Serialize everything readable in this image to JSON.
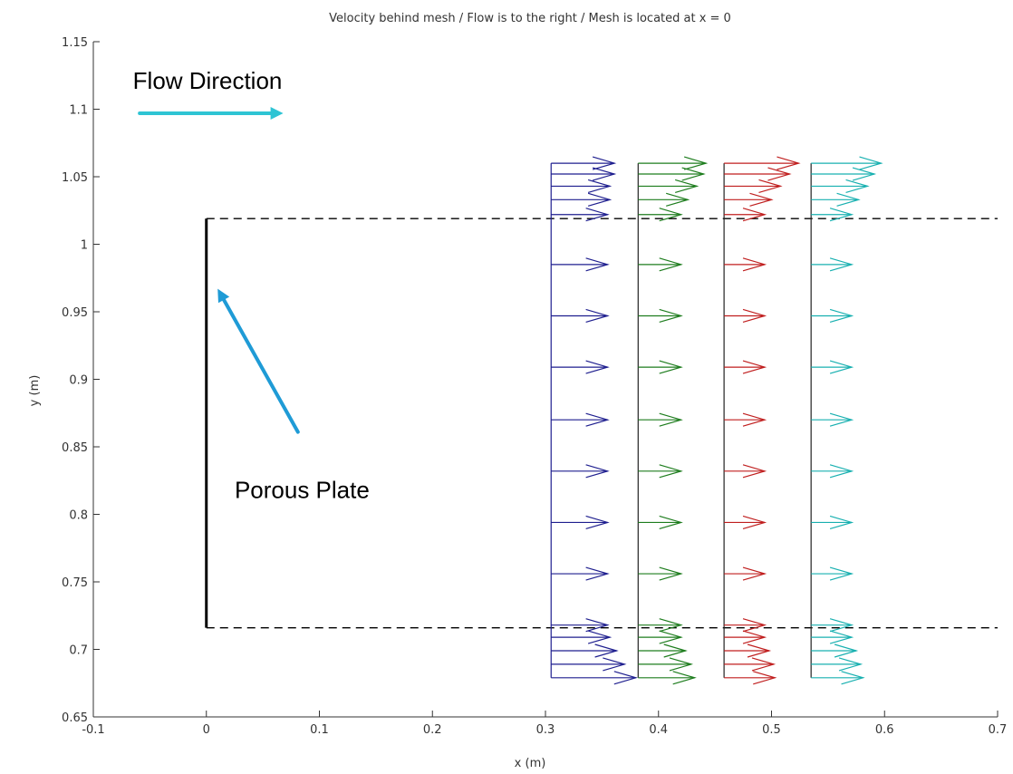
{
  "chart_data": {
    "type": "quiver",
    "title": "Velocity behind mesh / Flow is to the right / Mesh is located at x = 0",
    "xlabel": "x (m)",
    "ylabel": "y (m)",
    "xlim": [
      -0.1,
      0.7
    ],
    "ylim": [
      0.65,
      1.15
    ],
    "xticks": [
      -0.1,
      0,
      0.1,
      0.2,
      0.3,
      0.4,
      0.5,
      0.6,
      0.7
    ],
    "xtick_labels": [
      "-0.1",
      "0",
      "0.1",
      "0.2",
      "0.3",
      "0.4",
      "0.5",
      "0.6",
      "0.7"
    ],
    "yticks": [
      0.65,
      0.7,
      0.75,
      0.8,
      0.85,
      0.9,
      0.95,
      1,
      1.05,
      1.1,
      1.15
    ],
    "ytick_labels": [
      "0.65",
      "0.7",
      "0.75",
      "0.8",
      "0.85",
      "0.9",
      "0.95",
      "1",
      "1.05",
      "1.1",
      "1.15"
    ],
    "grid": false,
    "plate": {
      "x": 0,
      "y_bottom": 0.716,
      "y_top": 1.019,
      "color": "#000000"
    },
    "boundaries": {
      "y": [
        0.716,
        1.019
      ],
      "x_start": 0.0,
      "x_end": 0.7,
      "style": "dashed",
      "color": "#000000"
    },
    "series": [
      {
        "color": "#1f1f8f",
        "x0": 0.305,
        "points": [
          [
            0.679,
            0.075
          ],
          [
            0.689,
            0.065
          ],
          [
            0.699,
            0.058
          ],
          [
            0.709,
            0.052
          ],
          [
            0.718,
            0.05
          ],
          [
            0.756,
            0.05
          ],
          [
            0.794,
            0.05
          ],
          [
            0.832,
            0.05
          ],
          [
            0.87,
            0.05
          ],
          [
            0.909,
            0.05
          ],
          [
            0.947,
            0.05
          ],
          [
            0.985,
            0.05
          ],
          [
            1.022,
            0.05
          ],
          [
            1.033,
            0.052
          ],
          [
            1.043,
            0.052
          ],
          [
            1.052,
            0.056
          ],
          [
            1.06,
            0.056
          ]
        ]
      },
      {
        "color": "#1e7d1e",
        "x0": 0.382,
        "points": [
          [
            0.679,
            0.05
          ],
          [
            0.689,
            0.047
          ],
          [
            0.699,
            0.042
          ],
          [
            0.709,
            0.038
          ],
          [
            0.718,
            0.038
          ],
          [
            0.756,
            0.038
          ],
          [
            0.794,
            0.038
          ],
          [
            0.832,
            0.038
          ],
          [
            0.87,
            0.038
          ],
          [
            0.909,
            0.038
          ],
          [
            0.947,
            0.038
          ],
          [
            0.985,
            0.038
          ],
          [
            1.022,
            0.038
          ],
          [
            1.033,
            0.044
          ],
          [
            1.043,
            0.052
          ],
          [
            1.052,
            0.058
          ],
          [
            1.06,
            0.06
          ]
        ]
      },
      {
        "color": "#c01f1f",
        "x0": 0.458,
        "points": [
          [
            0.679,
            0.045
          ],
          [
            0.689,
            0.044
          ],
          [
            0.699,
            0.04
          ],
          [
            0.709,
            0.036
          ],
          [
            0.718,
            0.036
          ],
          [
            0.756,
            0.036
          ],
          [
            0.794,
            0.036
          ],
          [
            0.832,
            0.036
          ],
          [
            0.87,
            0.036
          ],
          [
            0.909,
            0.036
          ],
          [
            0.947,
            0.036
          ],
          [
            0.985,
            0.036
          ],
          [
            1.022,
            0.036
          ],
          [
            1.033,
            0.042
          ],
          [
            1.043,
            0.05
          ],
          [
            1.052,
            0.058
          ],
          [
            1.06,
            0.066
          ]
        ]
      },
      {
        "color": "#18b0b0",
        "x0": 0.535,
        "points": [
          [
            0.679,
            0.046
          ],
          [
            0.689,
            0.044
          ],
          [
            0.699,
            0.04
          ],
          [
            0.709,
            0.036
          ],
          [
            0.718,
            0.036
          ],
          [
            0.756,
            0.036
          ],
          [
            0.794,
            0.036
          ],
          [
            0.832,
            0.036
          ],
          [
            0.87,
            0.036
          ],
          [
            0.909,
            0.036
          ],
          [
            0.947,
            0.036
          ],
          [
            0.985,
            0.036
          ],
          [
            1.022,
            0.036
          ],
          [
            1.033,
            0.042
          ],
          [
            1.043,
            0.05
          ],
          [
            1.052,
            0.056
          ],
          [
            1.06,
            0.062
          ]
        ]
      }
    ],
    "annotations": [
      {
        "text": "Flow Direction",
        "x": -0.065,
        "y": 1.115,
        "arrow_from": [
          -0.059,
          1.097
        ],
        "arrow_to": [
          0.068,
          1.097
        ],
        "color": "#2ec4d4"
      },
      {
        "text": "Porous Plate",
        "x": 0.025,
        "y": 0.812,
        "arrow_from": [
          0.081,
          0.861
        ],
        "arrow_to": [
          0.01,
          0.967
        ],
        "color": "#1f9bd6"
      }
    ]
  }
}
